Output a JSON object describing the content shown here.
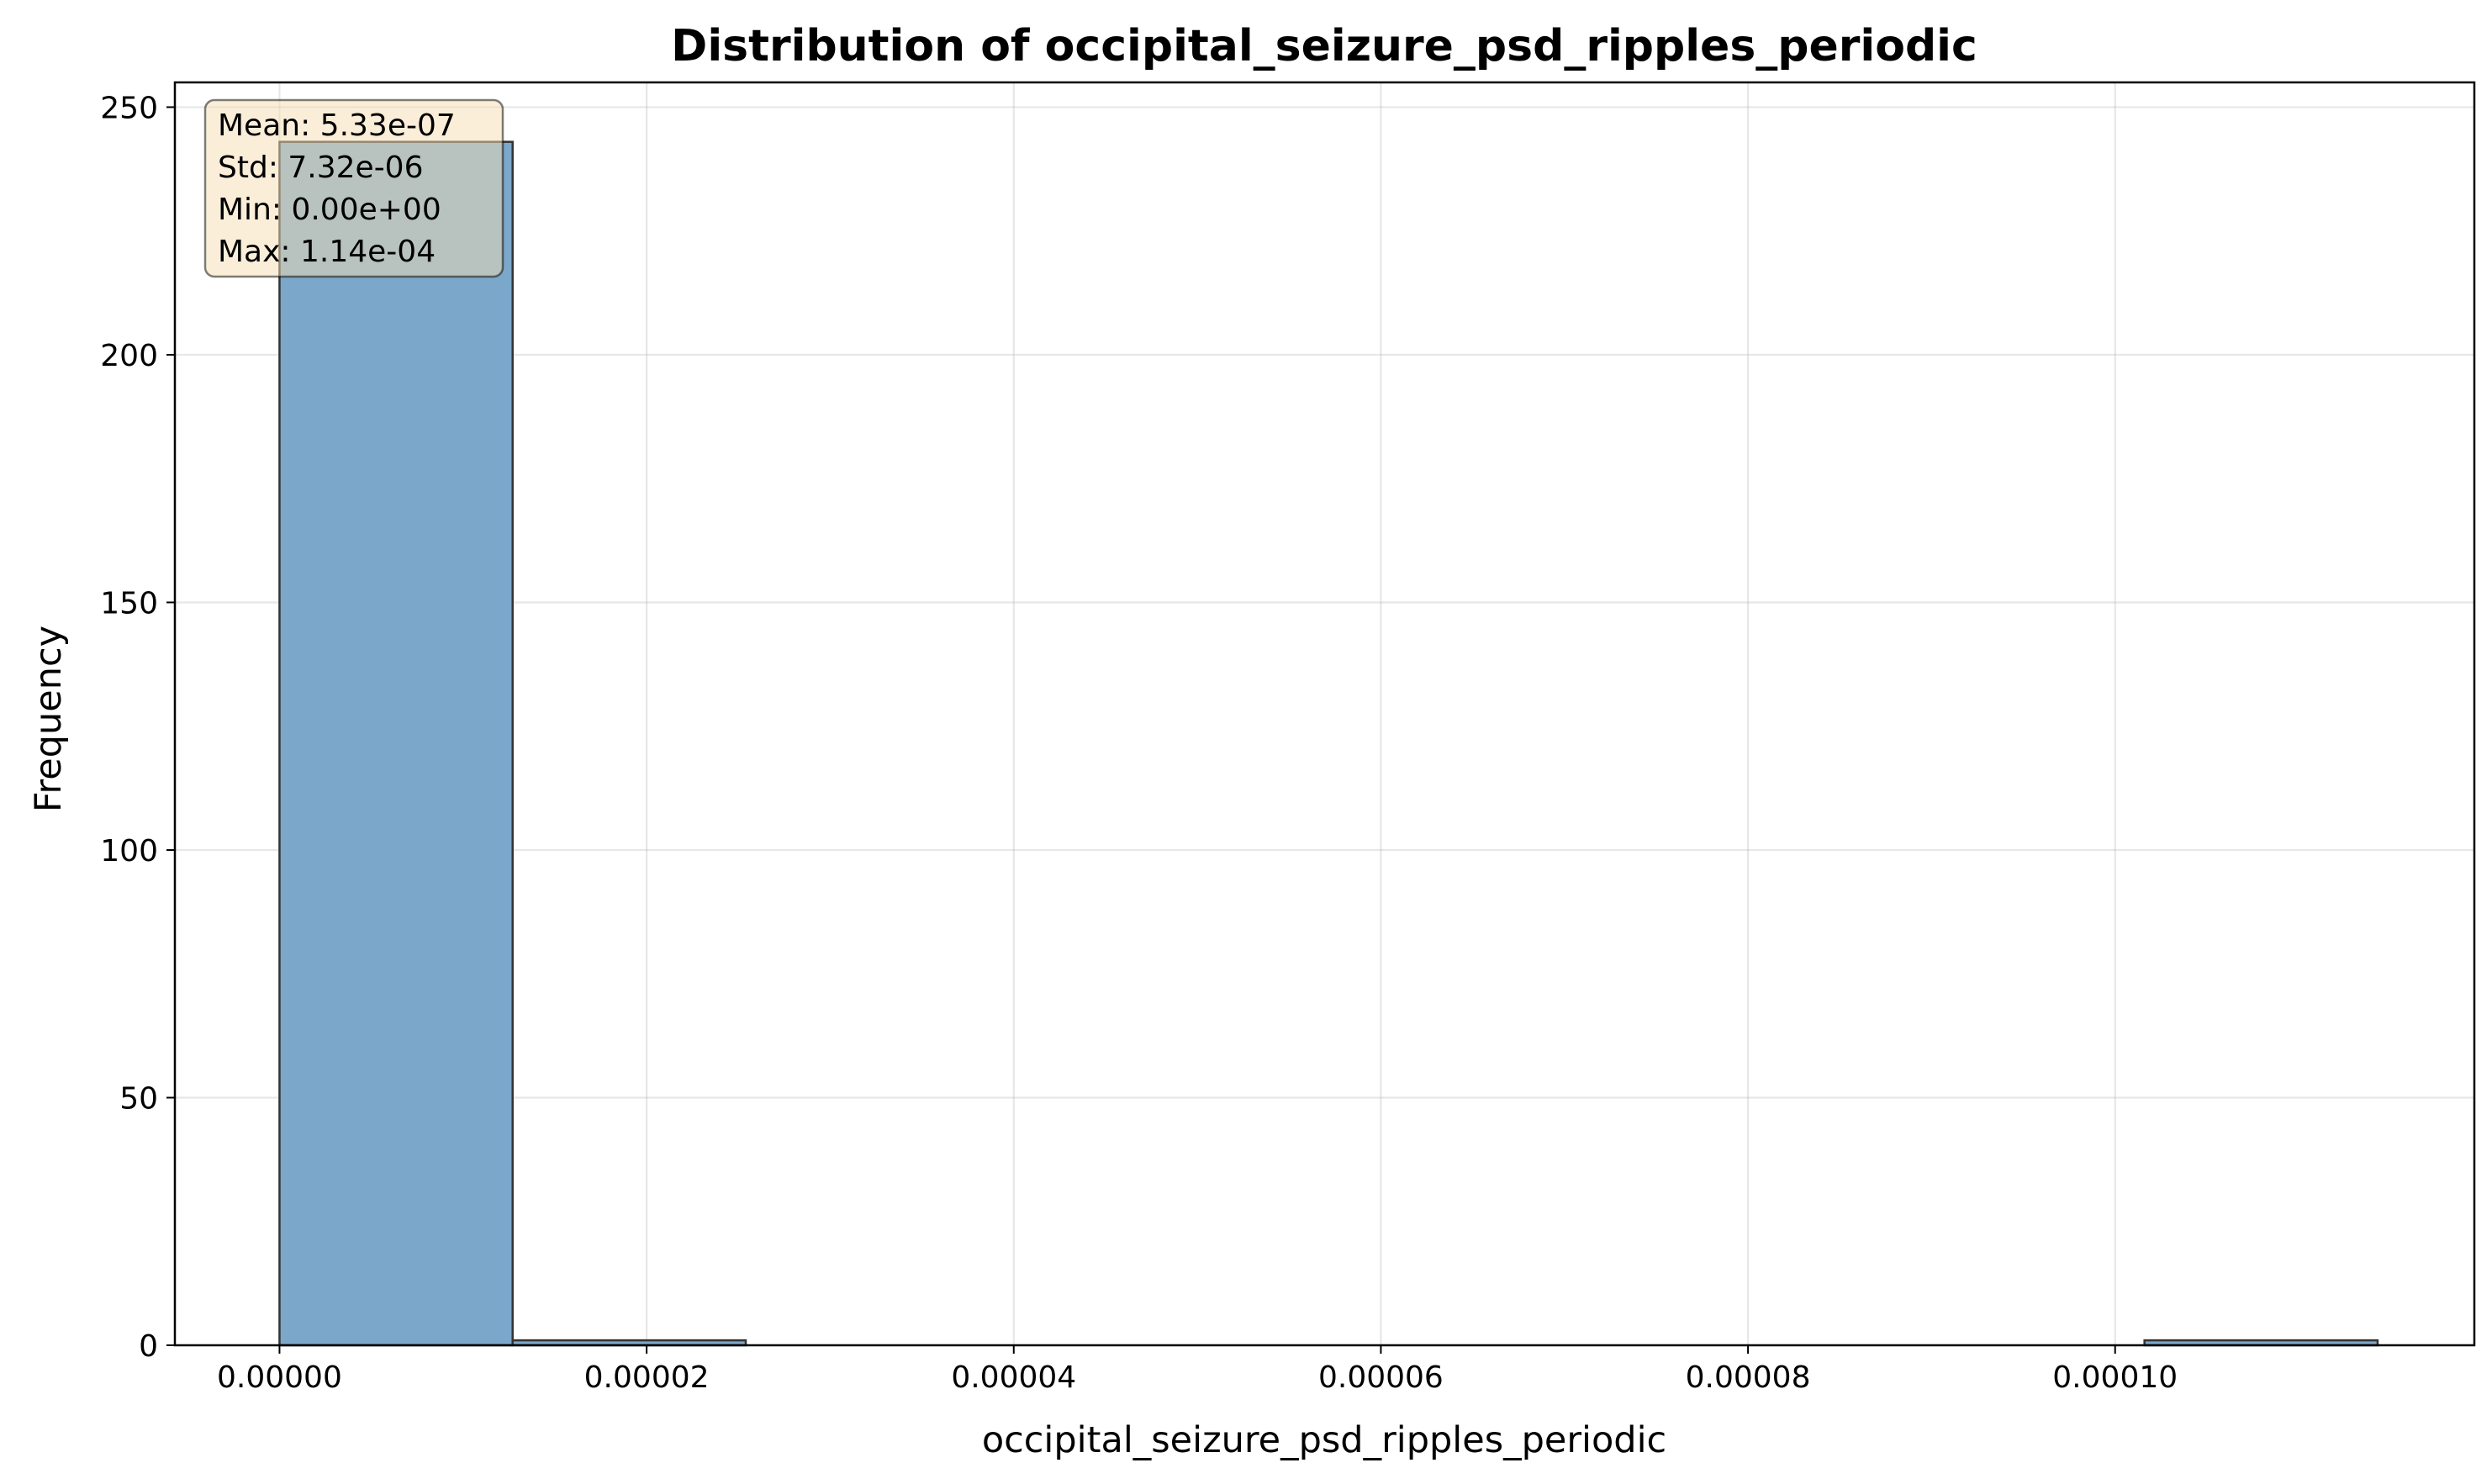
{
  "chart_data": {
    "type": "bar",
    "subtype": "histogram",
    "title": "Distribution of occipital_seizure_psd_ripples_periodic",
    "xlabel": "occipital_seizure_psd_ripples_periodic",
    "ylabel": "Frequency",
    "xlim": [
      -5.7e-06,
      0.00011957
    ],
    "ylim": [
      0,
      255
    ],
    "xticks": [
      0.0,
      2e-05,
      4e-05,
      6e-05,
      8e-05,
      0.0001
    ],
    "xtick_labels": [
      "0.00000",
      "0.00002",
      "0.00004",
      "0.00006",
      "0.00008",
      "0.00010"
    ],
    "yticks": [
      0,
      50,
      100,
      150,
      200,
      250
    ],
    "ytick_labels": [
      "0",
      "50",
      "100",
      "150",
      "200",
      "250"
    ],
    "bins": [
      {
        "x0": 0.0,
        "x1": 1.27e-05,
        "count": 243
      },
      {
        "x0": 1.27e-05,
        "x1": 2.54e-05,
        "count": 1
      },
      {
        "x0": 2.54e-05,
        "x1": 3.81e-05,
        "count": 0
      },
      {
        "x0": 3.81e-05,
        "x1": 5.08e-05,
        "count": 0
      },
      {
        "x0": 5.08e-05,
        "x1": 6.35e-05,
        "count": 0
      },
      {
        "x0": 6.35e-05,
        "x1": 7.62e-05,
        "count": 0
      },
      {
        "x0": 7.62e-05,
        "x1": 8.89e-05,
        "count": 0
      },
      {
        "x0": 8.89e-05,
        "x1": 0.0001016,
        "count": 0
      },
      {
        "x0": 0.0001016,
        "x1": 0.0001143,
        "count": 1
      }
    ],
    "grid": true,
    "bar_color": "#7ba7cb",
    "edge_color": "#333333",
    "stats_box": {
      "lines": [
        "Mean: 5.33e-07",
        "Std: 7.32e-06",
        "Min: 0.00e+00",
        "Max: 1.14e-04"
      ],
      "placement": "top-left",
      "background": "#f5deb3"
    }
  }
}
